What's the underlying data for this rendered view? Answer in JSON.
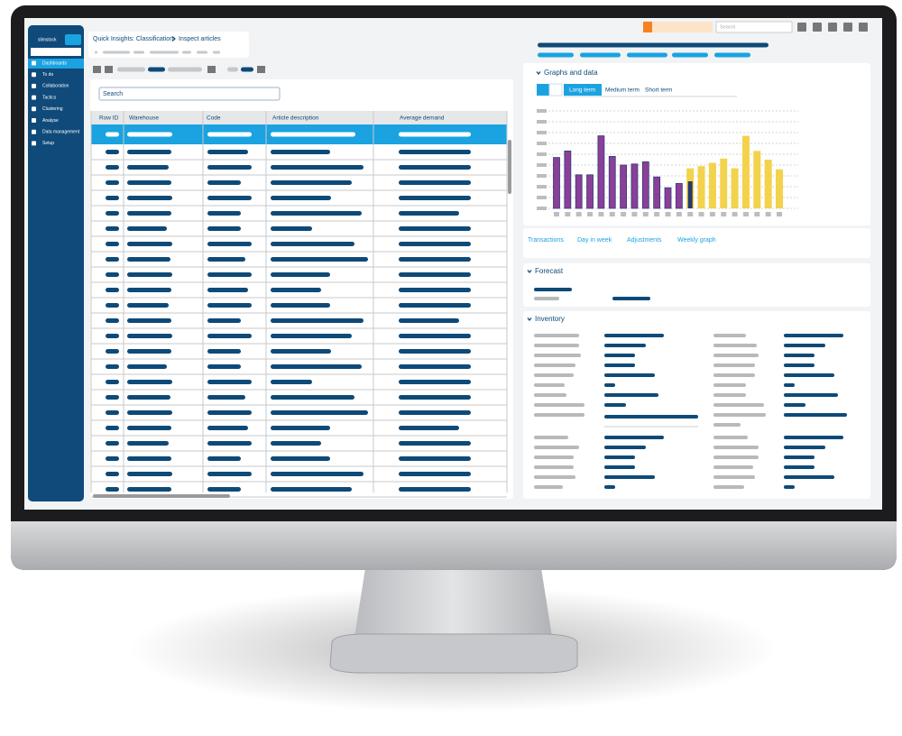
{
  "sidebar": {
    "logo": "slimstock",
    "items": [
      "Dashboards",
      "To do",
      "Collaboration",
      "Tactics",
      "Clustering",
      "Analyse",
      "Data management",
      "Setup"
    ]
  },
  "breadcrumb": {
    "section": "Quick Insights: Classification",
    "page": "Inspect articles"
  },
  "header": {
    "search": "Search"
  },
  "table": {
    "search": "Search",
    "columns": [
      "Row ID",
      "Warehouse",
      "Code",
      "Article description",
      "Average demand"
    ]
  },
  "graphs": {
    "title": "Graphs and data",
    "tabs": [
      "Long term",
      "Medium term",
      "Short term"
    ],
    "chart": {
      "history": [
        4.7,
        5.3,
        3.1,
        3.1,
        6.7,
        4.8,
        4.0,
        4.1,
        4.3,
        2.9,
        1.9,
        2.3
      ],
      "current": 2.5,
      "forecast": [
        3.7,
        3.9,
        4.2,
        4.6,
        3.7,
        6.7,
        5.3,
        4.5,
        3.6
      ],
      "ylim": [
        0,
        9
      ],
      "yticks": [
        0,
        1,
        2,
        3,
        4,
        5,
        6,
        7,
        8,
        9
      ],
      "colors": {
        "history": "#8b3f98",
        "current": "#243a6b",
        "forecast": "#f3d24c"
      }
    },
    "links": [
      "Transactions",
      "Day in week",
      "Adjustments",
      "Weekly graph"
    ]
  },
  "forecast": {
    "title": "Forecast"
  },
  "inventory": {
    "title": "Inventory"
  }
}
